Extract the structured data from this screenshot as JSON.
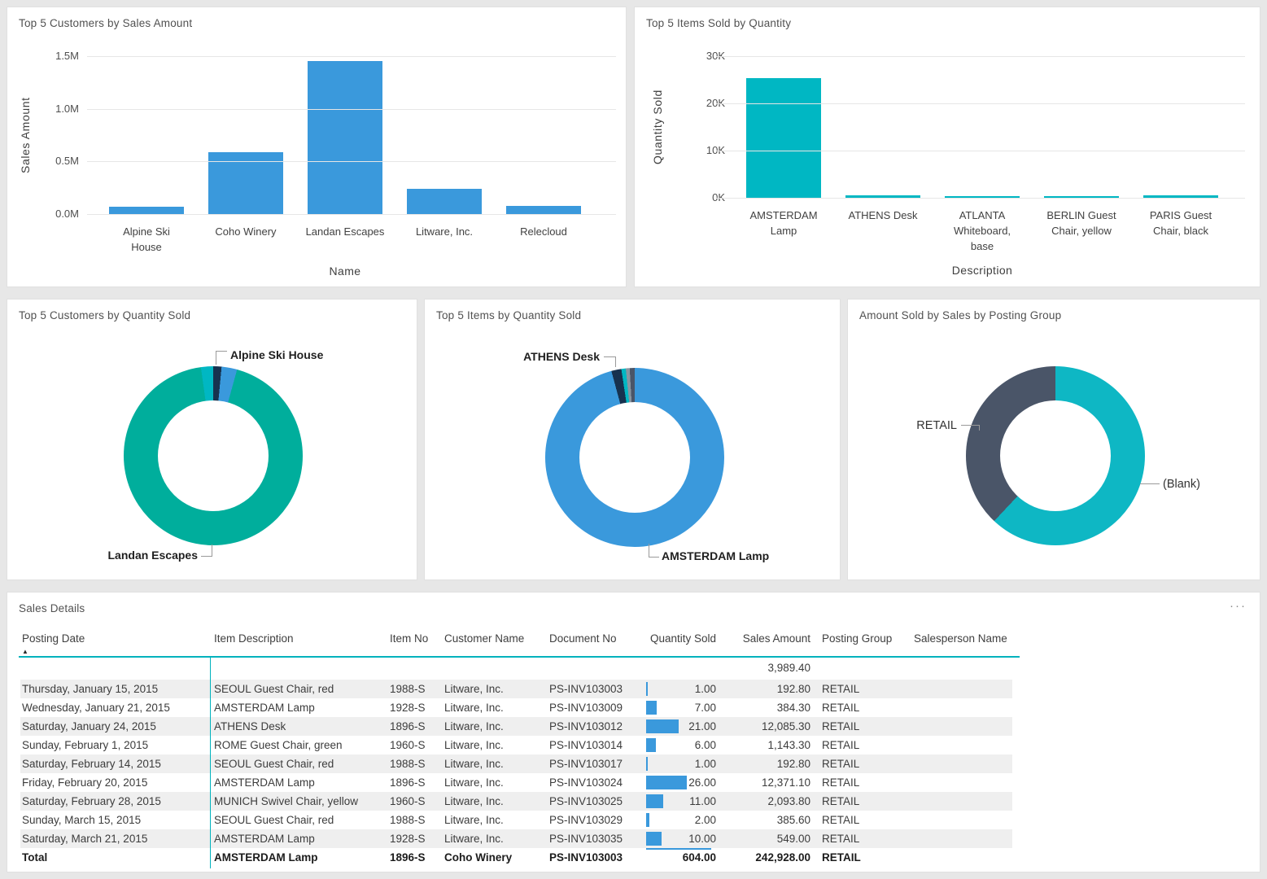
{
  "colors": {
    "blue": "#3A99DC",
    "teal": "#00AE9C",
    "cyan": "#00B7C3",
    "navy": "#17324F",
    "slate": "#4A5568",
    "gray_sliver": "#8A95A0",
    "page_bg": "#E7E7E7",
    "stripe": "#EFEFEF",
    "table_accent": "#00B2BD"
  },
  "chart_data": [
    {
      "type": "bar",
      "title": "Top 5 Customers by Sales Amount",
      "xlabel": "Name",
      "ylabel": "Sales Amount",
      "categories": [
        "Alpine Ski House",
        "Coho Winery",
        "Landan Escapes",
        "Litware, Inc.",
        "Relecloud"
      ],
      "values": [
        0.07,
        0.59,
        1.45,
        0.24,
        0.08
      ],
      "unit": "M",
      "ylim": [
        0,
        1.5
      ],
      "yticks": [
        "0.0M",
        "0.5M",
        "1.0M",
        "1.5M"
      ],
      "bar_color": "#3A99DC",
      "grid": true,
      "legend": "none"
    },
    {
      "type": "bar",
      "title": "Top 5 Items Sold by Quantity",
      "xlabel": "Description",
      "ylabel": "Quantity Sold",
      "categories": [
        "AMSTERDAM Lamp",
        "ATHENS Desk",
        "ATLANTA Whiteboard, base",
        "BERLIN Guest Chair, yellow",
        "PARIS Guest Chair, black"
      ],
      "values": [
        25.4,
        0.6,
        0.3,
        0.3,
        0.5
      ],
      "unit": "K",
      "ylim": [
        0,
        30
      ],
      "yticks": [
        "0K",
        "10K",
        "20K",
        "30K"
      ],
      "bar_color": "#00B7C3",
      "grid": true,
      "legend": "none"
    },
    {
      "type": "pie",
      "title": "Top 5 Customers by Quantity Sold",
      "slices": [
        {
          "label": "",
          "pct": 1.5,
          "color": "#17324F"
        },
        {
          "label": "Alpine Ski House",
          "pct": 2.8,
          "color": "#3A99DC"
        },
        {
          "label": "Landan Escapes",
          "pct": 93.5,
          "color": "#00AE9C"
        },
        {
          "label": "",
          "pct": 2.2,
          "color": "#00B7C3"
        }
      ],
      "legend": "none"
    },
    {
      "type": "pie",
      "title": "Top 5 Items by Quantity Sold",
      "slices": [
        {
          "label": "AMSTERDAM Lamp",
          "pct": 95.8,
          "color": "#3A99DC"
        },
        {
          "label": "ATHENS Desk",
          "pct": 1.8,
          "color": "#17324F"
        },
        {
          "label": "",
          "pct": 0.8,
          "color": "#00B7C3"
        },
        {
          "label": "",
          "pct": 0.7,
          "color": "#8A95A0"
        },
        {
          "label": "",
          "pct": 0.9,
          "color": "#4A5568"
        }
      ],
      "legend": "none"
    },
    {
      "type": "pie",
      "title": "Amount Sold by Sales by Posting Group",
      "slices": [
        {
          "label": "(Blank)",
          "pct": 62,
          "color": "#0EB7C4"
        },
        {
          "label": "RETAIL",
          "pct": 38,
          "color": "#4A5568"
        }
      ],
      "legend": "none"
    }
  ],
  "table": {
    "title": "Sales Details",
    "menu_label": "···",
    "sort_glyph": "▲",
    "sort_column_index": 0,
    "bar_max": 26,
    "columns": [
      "Posting Date",
      "Item Description",
      "Item No",
      "Customer Name",
      "Document No",
      "Quantity Sold",
      "Sales Amount",
      "Posting Group",
      "Salesperson Name"
    ],
    "rows": [
      {
        "posting_date": "",
        "item_description": "",
        "item_no": "",
        "customer_name": "",
        "document_no": "",
        "quantity_sold": "",
        "quantity_bar": 0,
        "sales_amount": "3,989.40",
        "posting_group": "",
        "salesperson_name": ""
      },
      {
        "posting_date": "Thursday, January 15, 2015",
        "item_description": "SEOUL Guest Chair, red",
        "item_no": "1988-S",
        "customer_name": "Litware, Inc.",
        "document_no": "PS-INV103003",
        "quantity_sold": "1.00",
        "quantity_bar": 1,
        "sales_amount": "192.80",
        "posting_group": "RETAIL",
        "salesperson_name": ""
      },
      {
        "posting_date": "Wednesday, January 21, 2015",
        "item_description": "AMSTERDAM Lamp",
        "item_no": "1928-S",
        "customer_name": "Litware, Inc.",
        "document_no": "PS-INV103009",
        "quantity_sold": "7.00",
        "quantity_bar": 7,
        "sales_amount": "384.30",
        "posting_group": "RETAIL",
        "salesperson_name": ""
      },
      {
        "posting_date": "Saturday, January 24, 2015",
        "item_description": "ATHENS Desk",
        "item_no": "1896-S",
        "customer_name": "Litware, Inc.",
        "document_no": "PS-INV103012",
        "quantity_sold": "21.00",
        "quantity_bar": 21,
        "sales_amount": "12,085.30",
        "posting_group": "RETAIL",
        "salesperson_name": ""
      },
      {
        "posting_date": "Sunday, February 1, 2015",
        "item_description": "ROME Guest Chair, green",
        "item_no": "1960-S",
        "customer_name": "Litware, Inc.",
        "document_no": "PS-INV103014",
        "quantity_sold": "6.00",
        "quantity_bar": 6,
        "sales_amount": "1,143.30",
        "posting_group": "RETAIL",
        "salesperson_name": ""
      },
      {
        "posting_date": "Saturday, February 14, 2015",
        "item_description": "SEOUL Guest Chair, red",
        "item_no": "1988-S",
        "customer_name": "Litware, Inc.",
        "document_no": "PS-INV103017",
        "quantity_sold": "1.00",
        "quantity_bar": 1,
        "sales_amount": "192.80",
        "posting_group": "RETAIL",
        "salesperson_name": ""
      },
      {
        "posting_date": "Friday, February 20, 2015",
        "item_description": "AMSTERDAM Lamp",
        "item_no": "1896-S",
        "customer_name": "Litware, Inc.",
        "document_no": "PS-INV103024",
        "quantity_sold": "26.00",
        "quantity_bar": 26,
        "sales_amount": "12,371.10",
        "posting_group": "RETAIL",
        "salesperson_name": ""
      },
      {
        "posting_date": "Saturday, February 28, 2015",
        "item_description": "MUNICH Swivel Chair, yellow",
        "item_no": "1960-S",
        "customer_name": "Litware, Inc.",
        "document_no": "PS-INV103025",
        "quantity_sold": "11.00",
        "quantity_bar": 11,
        "sales_amount": "2,093.80",
        "posting_group": "RETAIL",
        "salesperson_name": ""
      },
      {
        "posting_date": "Sunday, March 15, 2015",
        "item_description": "SEOUL Guest Chair, red",
        "item_no": "1988-S",
        "customer_name": "Litware, Inc.",
        "document_no": "PS-INV103029",
        "quantity_sold": "2.00",
        "quantity_bar": 2,
        "sales_amount": "385.60",
        "posting_group": "RETAIL",
        "salesperson_name": ""
      },
      {
        "posting_date": "Saturday, March 21, 2015",
        "item_description": "AMSTERDAM Lamp",
        "item_no": "1928-S",
        "customer_name": "Litware, Inc.",
        "document_no": "PS-INV103035",
        "quantity_sold": "10.00",
        "quantity_bar": 10,
        "sales_amount": "549.00",
        "posting_group": "RETAIL",
        "salesperson_name": ""
      }
    ],
    "total_row": {
      "posting_date": "Total",
      "item_description": "AMSTERDAM Lamp",
      "item_no": "1896-S",
      "customer_name": "Coho Winery",
      "document_no": "PS-INV103003",
      "quantity_sold": "604.00",
      "quantity_bar": 604,
      "sales_amount": "242,928.00",
      "posting_group": "RETAIL",
      "salesperson_name": ""
    }
  }
}
